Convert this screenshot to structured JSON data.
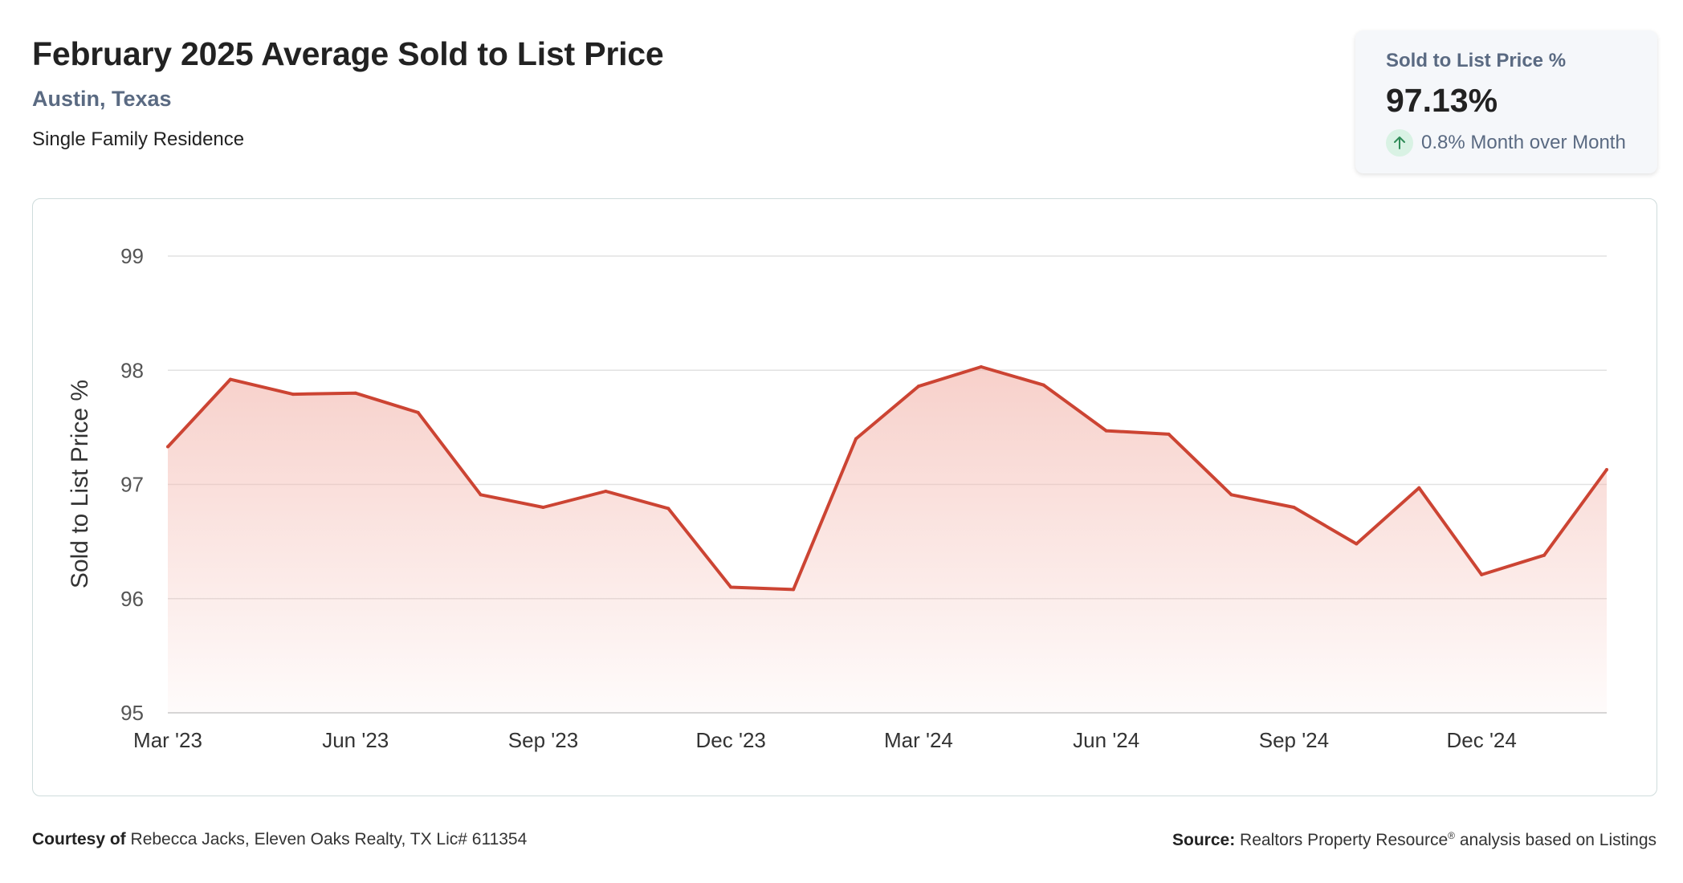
{
  "header": {
    "title": "February 2025 Average Sold to List Price",
    "location": "Austin, Texas",
    "property_type": "Single Family Residence"
  },
  "stat_card": {
    "label": "Sold to List Price %",
    "value": "97.13%",
    "change_text": "0.8% Month over Month",
    "trend_icon": "arrow-up-icon",
    "trend_color": "#2e8b57"
  },
  "footer": {
    "courtesy_label": "Courtesy of",
    "courtesy_text": "Rebecca Jacks, Eleven Oaks Realty, TX Lic# 611354",
    "source_label": "Source:",
    "source_name": "Realtors Property Resource",
    "source_mark": "®",
    "source_text": "analysis based on Listings"
  },
  "chart_data": {
    "type": "area",
    "title": "February 2025 Average Sold to List Price",
    "ylabel": "Sold to List Price %",
    "xlabel": "",
    "ylim": [
      95,
      99
    ],
    "yticks": [
      95,
      96,
      97,
      98,
      99
    ],
    "xtick_labels": [
      "Mar '23",
      "Jun '23",
      "Sep '23",
      "Dec '23",
      "Mar '24",
      "Jun '24",
      "Sep '24",
      "Dec '24"
    ],
    "x": [
      "Mar '23",
      "Apr '23",
      "May '23",
      "Jun '23",
      "Jul '23",
      "Aug '23",
      "Sep '23",
      "Oct '23",
      "Nov '23",
      "Dec '23",
      "Jan '24",
      "Feb '24",
      "Mar '24",
      "Apr '24",
      "May '24",
      "Jun '24",
      "Jul '24",
      "Aug '24",
      "Sep '24",
      "Oct '24",
      "Nov '24",
      "Dec '24",
      "Jan '25",
      "Feb '25"
    ],
    "series": [
      {
        "values": [
          97.33,
          97.92,
          97.79,
          97.8,
          97.63,
          96.91,
          96.8,
          96.94,
          96.79,
          96.1,
          96.08,
          97.4,
          97.86,
          98.03,
          97.87,
          97.47,
          97.44,
          96.91,
          96.8,
          96.48,
          96.97,
          96.21,
          96.38,
          97.13
        ],
        "color": "#cc4433"
      }
    ],
    "grid": true,
    "legend": "none"
  }
}
